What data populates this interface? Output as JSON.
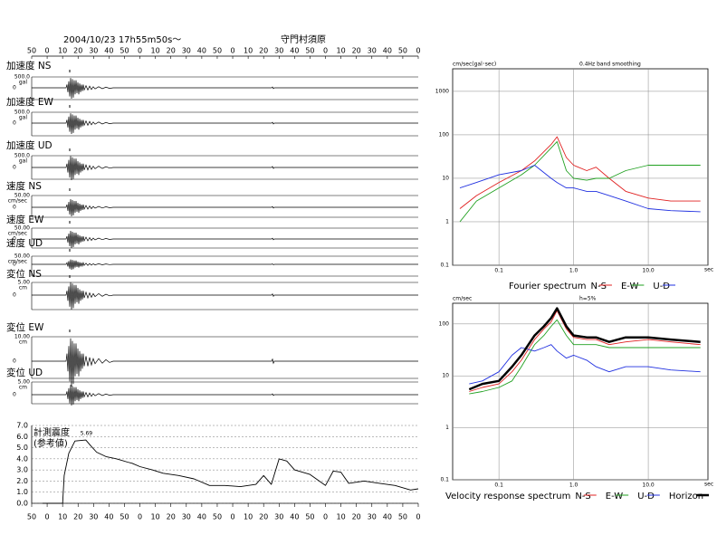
{
  "header": {
    "date": "2004/10/23  17h55m50s〜",
    "station": "守門村須原"
  },
  "traces": [
    {
      "label": "加速度 NS",
      "scale": "500.0",
      "unit": "gal",
      "zero": "0"
    },
    {
      "label": "加速度 EW",
      "scale": "500.0",
      "unit": "gal",
      "zero": "0"
    },
    {
      "label": "加速度 UD",
      "scale": "500.0",
      "unit": "gal",
      "zero": "0"
    },
    {
      "label": "速度 NS",
      "scale": "50.00",
      "unit": "cm/sec",
      "zero": "0"
    },
    {
      "label": "速度 EW",
      "scale": "50.00",
      "unit": "cm/sec",
      "zero": "0"
    },
    {
      "label": "速度 UD",
      "scale": "50.00",
      "unit": "cm/sec",
      "zero": "0"
    },
    {
      "label": "変位 NS",
      "scale": "5.00",
      "unit": "cm",
      "zero": "0"
    },
    {
      "label": "変位 EW",
      "scale": "10.00",
      "unit": "cm",
      "zero": "0"
    },
    {
      "label": "変位 UD",
      "scale": "5.00",
      "unit": "cm",
      "zero": "0"
    }
  ],
  "chart_data": [
    {
      "type": "line",
      "title": "Fourier spectrum",
      "subtitle": "0.4Hz band smoothing",
      "ylabel": "cm/sec(gal･sec)",
      "xlabel": "sec",
      "log_x": true,
      "log_y": true,
      "grid": true,
      "xgrid": true,
      "xlim": [
        0.024,
        63
      ],
      "ylim": [
        0.1,
        3300
      ],
      "xticks": [
        0.1,
        {
          "value": 1,
          "label": "1.0"
        },
        {
          "value": 10,
          "label": "10.0"
        }
      ],
      "yticks": [
        0.1,
        1,
        10,
        100,
        1000
      ],
      "x": [
        0.03,
        0.05,
        0.1,
        0.2,
        0.3,
        0.5,
        0.6,
        0.8,
        1.0,
        1.5,
        2,
        3,
        5,
        10,
        20,
        50
      ],
      "series": [
        {
          "name": "N-S",
          "color": "#e02020",
          "values": [
            2,
            4,
            8,
            15,
            25,
            60,
            90,
            30,
            20,
            15,
            18,
            10,
            5,
            3.5,
            3,
            3
          ]
        },
        {
          "name": "E-W",
          "color": "#20a020",
          "values": [
            1,
            3,
            6,
            12,
            20,
            50,
            70,
            15,
            10,
            9,
            10,
            10,
            15,
            20,
            20,
            20
          ]
        },
        {
          "name": "U-D",
          "color": "#2030e0",
          "values": [
            6,
            8,
            12,
            15,
            20,
            10,
            8,
            6,
            6,
            5,
            5,
            4,
            3,
            2,
            1.8,
            1.7
          ]
        }
      ]
    },
    {
      "type": "line",
      "title": "Velocity response spectrum",
      "subtitle": "h=5%",
      "ylabel": "cm/sec",
      "xlabel": "sec",
      "log_x": true,
      "log_y": true,
      "grid": true,
      "xgrid": true,
      "xlim": [
        0.024,
        63
      ],
      "ylim": [
        0.1,
        250
      ],
      "xticks": [
        0.1,
        {
          "value": 1,
          "label": "1.0"
        },
        {
          "value": 10,
          "label": "10.0"
        }
      ],
      "yticks": [
        0.1,
        1,
        10,
        100
      ],
      "x": [
        0.04,
        0.06,
        0.1,
        0.15,
        0.2,
        0.3,
        0.4,
        0.5,
        0.6,
        0.8,
        1.0,
        1.5,
        2,
        3,
        5,
        10,
        20,
        50
      ],
      "series": [
        {
          "name": "N-S",
          "color": "#e02020",
          "values": [
            5,
            6,
            7,
            12,
            20,
            50,
            80,
            110,
            180,
            80,
            55,
            50,
            50,
            40,
            45,
            50,
            45,
            40
          ]
        },
        {
          "name": "E-W",
          "color": "#20a020",
          "values": [
            4.5,
            5,
            6,
            8,
            15,
            40,
            60,
            90,
            120,
            60,
            40,
            40,
            40,
            35,
            35,
            35,
            35,
            35
          ]
        },
        {
          "name": "U-D",
          "color": "#2030e0",
          "values": [
            7,
            8,
            12,
            25,
            35,
            30,
            35,
            40,
            30,
            22,
            25,
            20,
            15,
            12,
            15,
            15,
            13,
            12
          ]
        },
        {
          "name": "Horizon",
          "color": "#000000",
          "linewidth": 2.5,
          "values": [
            5.5,
            7,
            8,
            15,
            25,
            60,
            90,
            130,
            200,
            90,
            60,
            55,
            55,
            45,
            55,
            55,
            50,
            45
          ]
        }
      ]
    },
    {
      "type": "line",
      "title": "計測震度",
      "subtitle": "(参考値)",
      "annotation": "5.69",
      "log_x": false,
      "log_y": false,
      "grid": true,
      "xgrid": false,
      "color": "#000000",
      "xlim": [
        0,
        250
      ],
      "ylim": [
        0,
        7
      ],
      "xticks": [
        {
          "value": 0,
          "label": "50"
        },
        {
          "value": 10,
          "label": "0"
        },
        {
          "value": 20,
          "label": "10"
        },
        {
          "value": 30,
          "label": "20"
        },
        {
          "value": 40,
          "label": "30"
        },
        {
          "value": 50,
          "label": "40"
        },
        {
          "value": 60,
          "label": "50"
        },
        {
          "value": 70,
          "label": "0"
        },
        {
          "value": 80,
          "label": "10"
        },
        {
          "value": 90,
          "label": "20"
        },
        {
          "value": 100,
          "label": "30"
        },
        {
          "value": 110,
          "label": "40"
        },
        {
          "value": 120,
          "label": "50"
        },
        {
          "value": 130,
          "label": "0"
        },
        {
          "value": 140,
          "label": "10"
        },
        {
          "value": 150,
          "label": "20"
        },
        {
          "value": 160,
          "label": "30"
        },
        {
          "value": 170,
          "label": "40"
        },
        {
          "value": 180,
          "label": "50"
        },
        {
          "value": 190,
          "label": "0"
        },
        {
          "value": 200,
          "label": "10"
        },
        {
          "value": 210,
          "label": "20"
        },
        {
          "value": 220,
          "label": "30"
        },
        {
          "value": 230,
          "label": "40"
        },
        {
          "value": 240,
          "label": "50"
        },
        {
          "value": 250,
          "label": "0"
        }
      ],
      "yticks": [
        {
          "value": 0,
          "label": "0.0"
        },
        {
          "value": 1,
          "label": "1.0"
        },
        {
          "value": 2,
          "label": "2.0"
        },
        {
          "value": 3,
          "label": "3.0"
        },
        {
          "value": 4,
          "label": "4.0"
        },
        {
          "value": 5,
          "label": "5.0"
        },
        {
          "value": 6,
          "label": "6.0"
        },
        {
          "value": 7,
          "label": "7.0"
        }
      ],
      "x": [
        7,
        20,
        21,
        24,
        28,
        35,
        38,
        42,
        48,
        55,
        62,
        65,
        70,
        78,
        85,
        95,
        105,
        115,
        125,
        135,
        145,
        150,
        155,
        160,
        165,
        170,
        180,
        190,
        195,
        200,
        205,
        215,
        225,
        235,
        245,
        250
      ],
      "values": [
        0,
        0,
        2.5,
        4.5,
        5.6,
        5.69,
        5.2,
        4.6,
        4.2,
        4.0,
        3.7,
        3.6,
        3.3,
        3.0,
        2.7,
        2.5,
        2.2,
        1.6,
        1.6,
        1.5,
        1.7,
        2.5,
        1.7,
        4.0,
        3.8,
        3.0,
        2.6,
        1.6,
        2.9,
        2.8,
        1.8,
        2.0,
        1.8,
        1.6,
        1.2,
        1.3
      ]
    }
  ]
}
